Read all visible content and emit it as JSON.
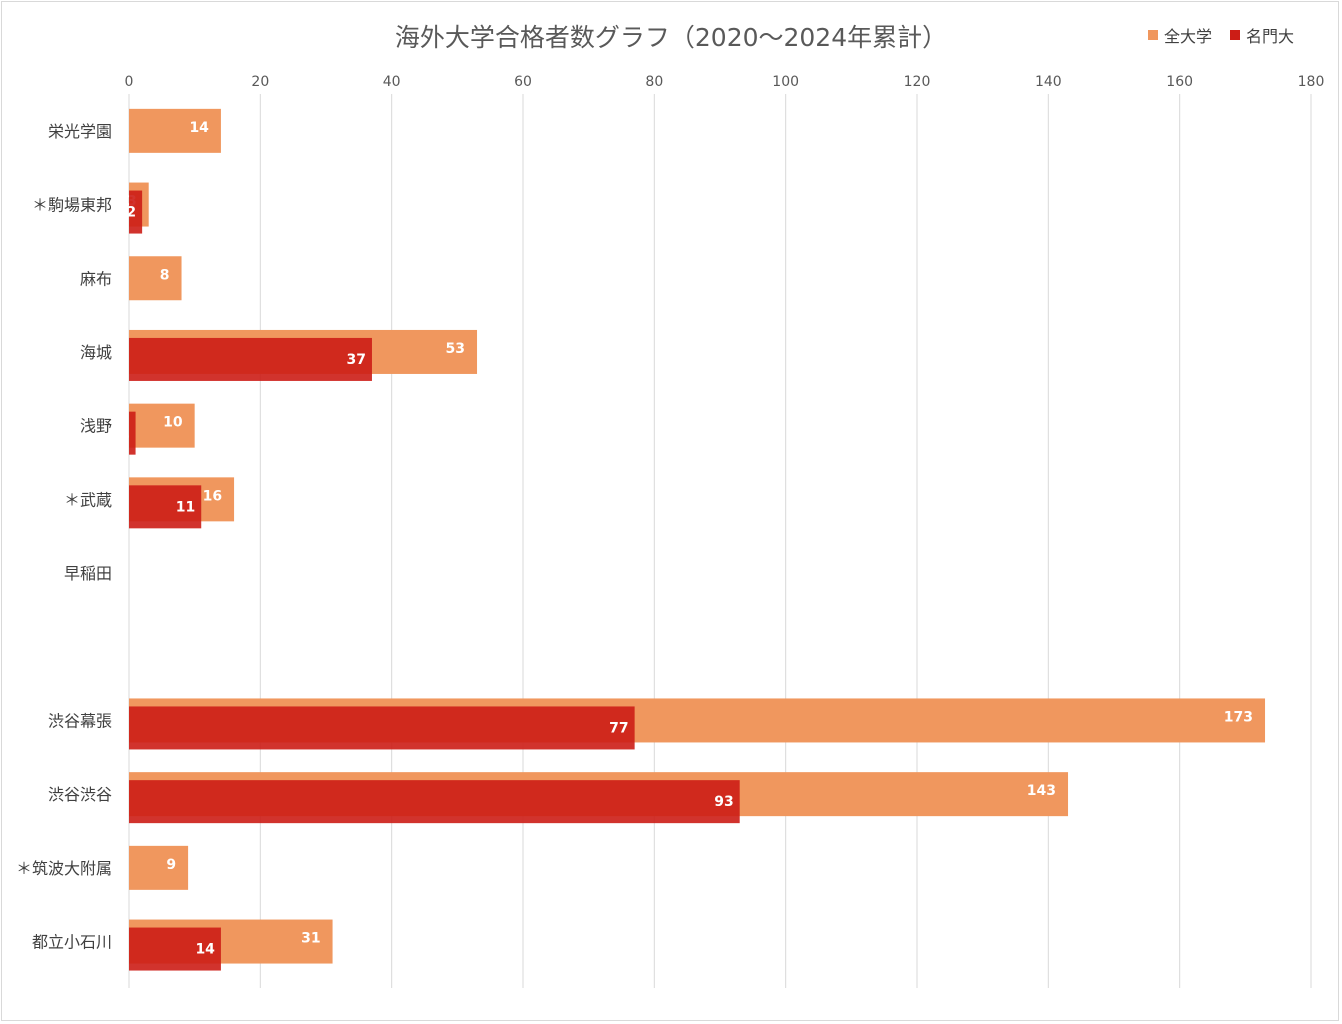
{
  "chart_data": {
    "type": "bar",
    "orientation": "horizontal",
    "title": "海外大学合格者数グラフ（2020〜2024年累計）",
    "categories": [
      "栄光学園",
      "＊駒場東邦",
      "麻布",
      "海城",
      "浅野",
      "＊武蔵",
      "早稲田",
      "",
      "渋谷幕張",
      "渋谷渋谷",
      "＊筑波大附属",
      "都立小石川"
    ],
    "series": [
      {
        "name": "全大学",
        "color": "#f0975e",
        "values": [
          14,
          3,
          8,
          53,
          10,
          16,
          null,
          null,
          173,
          143,
          9,
          31
        ]
      },
      {
        "name": "名門大",
        "color": "#cc1d16",
        "values": [
          null,
          2,
          null,
          37,
          1,
          11,
          null,
          null,
          77,
          93,
          null,
          14
        ]
      }
    ],
    "xlim": [
      0,
      180
    ],
    "xticks": [
      0,
      20,
      40,
      60,
      80,
      100,
      120,
      140,
      160,
      180
    ],
    "legend_position": "top-right",
    "grid": true
  }
}
